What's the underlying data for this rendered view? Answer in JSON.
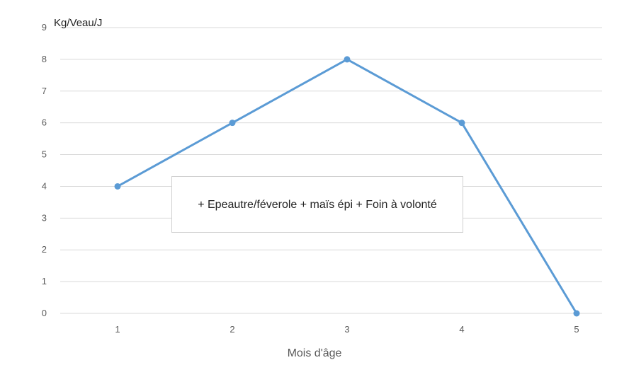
{
  "chart_data": {
    "type": "line",
    "title": "",
    "ylabel": "Kg/Veau/J",
    "xlabel": "Mois d'âge",
    "categories": [
      "1",
      "2",
      "3",
      "4",
      "5"
    ],
    "yticks": [
      "0",
      "1",
      "2",
      "3",
      "4",
      "5",
      "6",
      "7",
      "8",
      "9"
    ],
    "ylim": [
      0,
      9
    ],
    "grid": true,
    "series": [
      {
        "values": [
          4,
          6,
          8,
          6,
          0
        ],
        "color": "#5b9bd5"
      }
    ],
    "annotation": "+ Epeautre/féverole  + maïs épi + Foin à volonté"
  }
}
